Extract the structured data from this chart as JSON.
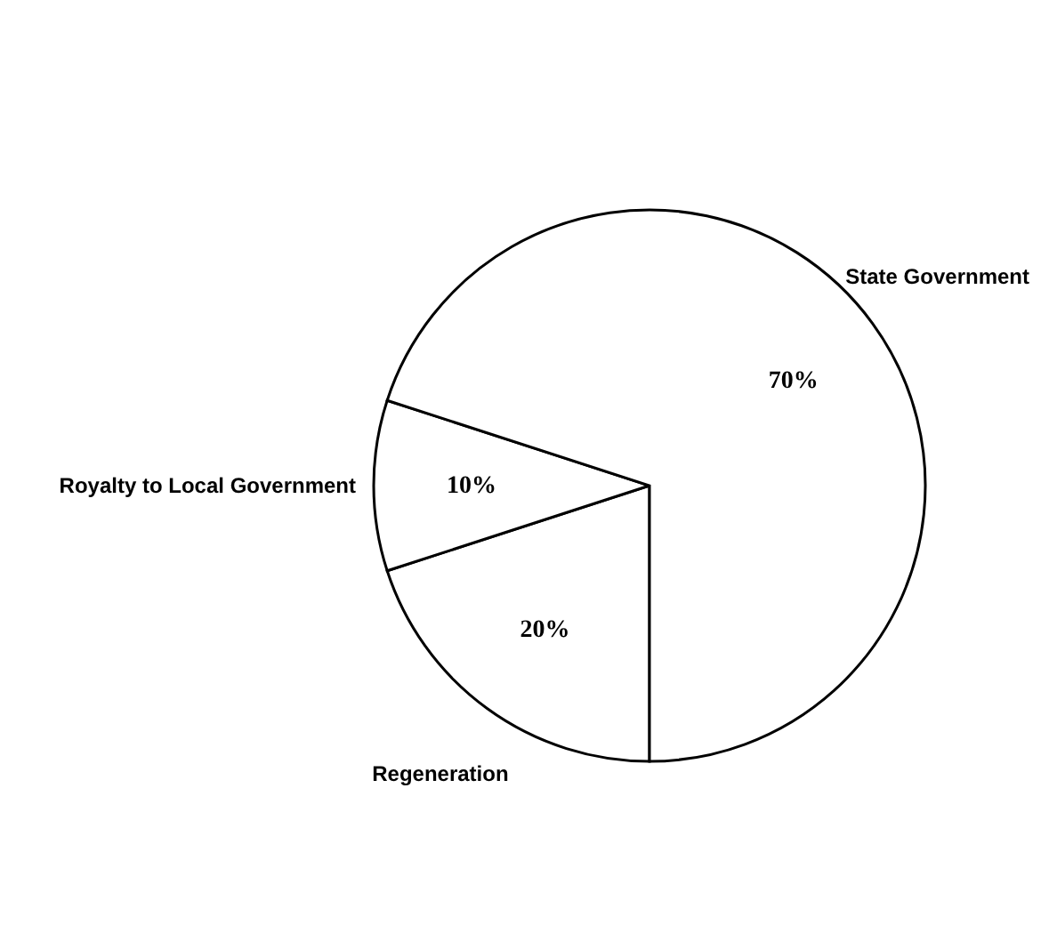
{
  "chart_data": {
    "type": "pie",
    "categories": [
      "Regeneration",
      "Royalty to Local Government",
      "State Government"
    ],
    "values": [
      20,
      10,
      70
    ],
    "value_labels": [
      "20%",
      "10%",
      "70%"
    ],
    "colors": [
      "#ffffff",
      "#ffffff",
      "#ffffff"
    ],
    "legend": false
  }
}
